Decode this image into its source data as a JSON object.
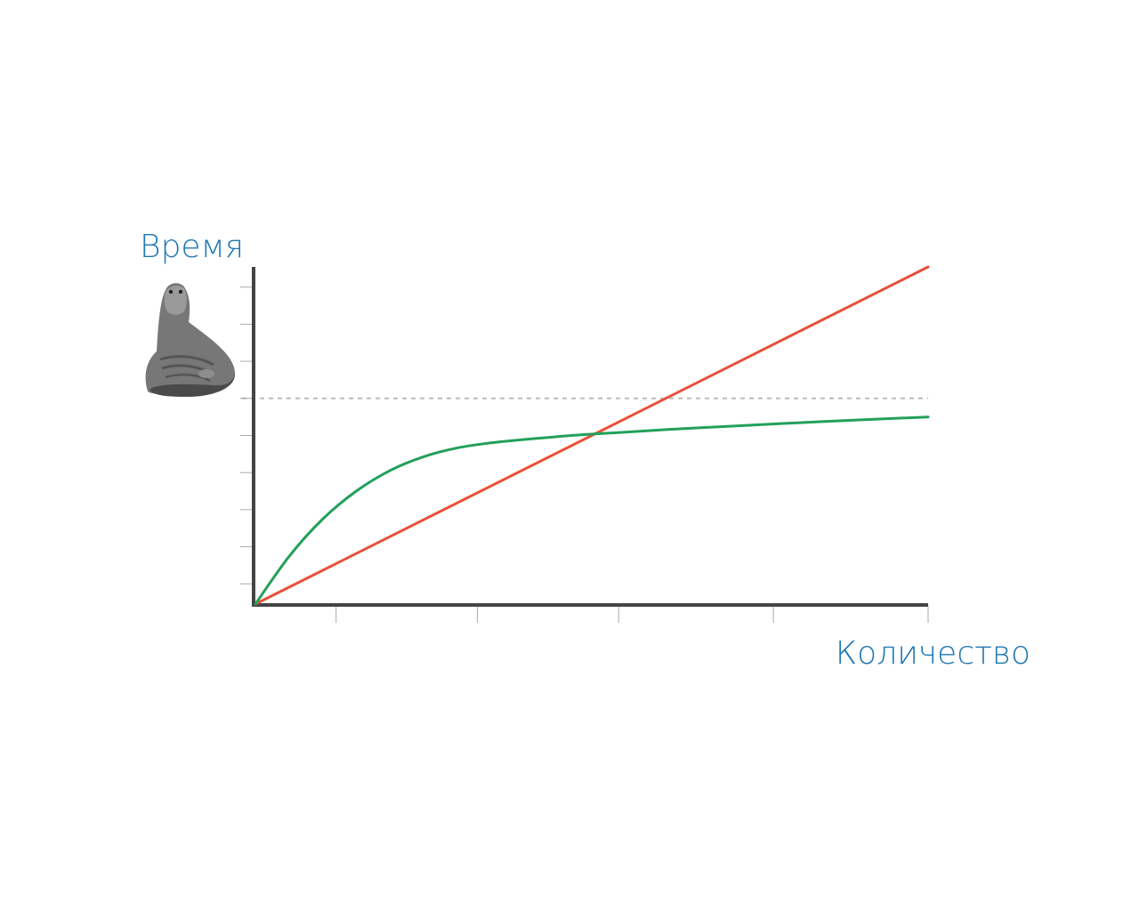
{
  "chart_data": {
    "type": "line",
    "title": "",
    "xlabel": "Количество",
    "ylabel": "Время",
    "xlim": [
      0,
      1
    ],
    "ylim": [
      0,
      1
    ],
    "grid": false,
    "x_major_ticks": [
      0.12,
      0.33,
      0.54,
      0.77,
      1.0
    ],
    "y_minor_ticks": [
      0.06,
      0.17,
      0.28,
      0.39,
      0.5,
      0.61,
      0.72,
      0.83,
      0.94
    ],
    "reference_line": {
      "y": 0.61,
      "style": "dashed",
      "color": "#bbbbbb"
    },
    "series": [
      {
        "color": "#e8503a",
        "x": [
          0,
          1
        ],
        "y": [
          0,
          1
        ]
      },
      {
        "color": "#22a05a",
        "x": [
          0,
          0.05,
          0.1,
          0.15,
          0.2,
          0.25,
          0.3,
          0.35,
          0.4,
          0.47,
          0.55,
          0.65,
          0.75,
          0.85,
          1.0
        ],
        "y": [
          0,
          0.141,
          0.252,
          0.335,
          0.396,
          0.437,
          0.463,
          0.478,
          0.488,
          0.5,
          0.51,
          0.522,
          0.532,
          0.542,
          0.555
        ]
      }
    ]
  },
  "mascot": {
    "icon": "creature-mascot-icon"
  },
  "colors": {
    "label": "#1f78b4",
    "axis": "#444444",
    "tick": "#aaaaaa"
  }
}
